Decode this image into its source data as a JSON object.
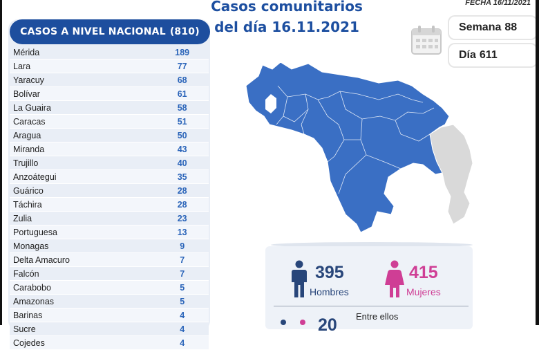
{
  "header": {
    "title_line1": "Casos comunitarios",
    "title_line2": "del día 16.11.2021",
    "date_label": "FECHA 16/11/2021"
  },
  "national": {
    "heading": "CASOS A NIVEL NACIONAL",
    "total": "(810)",
    "rows": [
      {
        "name": "Mérida",
        "value": "189"
      },
      {
        "name": "Lara",
        "value": "77"
      },
      {
        "name": "Yaracuy",
        "value": "68"
      },
      {
        "name": "Bolívar",
        "value": "61"
      },
      {
        "name": "La Guaira",
        "value": "58"
      },
      {
        "name": "Caracas",
        "value": "51"
      },
      {
        "name": "Aragua",
        "value": "50"
      },
      {
        "name": "Miranda",
        "value": "43"
      },
      {
        "name": "Trujillo",
        "value": "40"
      },
      {
        "name": "Anzoátegui",
        "value": "35"
      },
      {
        "name": "Guárico",
        "value": "28"
      },
      {
        "name": "Táchira",
        "value": "28"
      },
      {
        "name": "Zulia",
        "value": "23"
      },
      {
        "name": "Portuguesa",
        "value": "13"
      },
      {
        "name": "Monagas",
        "value": "9"
      },
      {
        "name": "Delta Amacuro",
        "value": "7"
      },
      {
        "name": "Falcón",
        "value": "7"
      },
      {
        "name": "Carabobo",
        "value": "5"
      },
      {
        "name": "Amazonas",
        "value": "5"
      },
      {
        "name": "Barinas",
        "value": "4"
      },
      {
        "name": "Sucre",
        "value": "4"
      },
      {
        "name": "Cojedes",
        "value": "4"
      }
    ]
  },
  "stats": {
    "week_label": "Semana",
    "week_value": "88",
    "day_label": "Día",
    "day_value": "611"
  },
  "gender": {
    "men_count": "395",
    "men_label": "Hombres",
    "women_count": "415",
    "women_label": "Mujeres",
    "among_label": "Entre ellos",
    "among_count": "20"
  },
  "icons": {
    "calendar": "calendar-icon",
    "man": "man-icon",
    "woman": "woman-icon"
  },
  "colors": {
    "primary_blue": "#1d4e9e",
    "value_blue": "#2a64b9",
    "women_pink": "#cf3e95",
    "map_blue": "#3a6fc4",
    "territory_gray": "#d9d9d9"
  }
}
